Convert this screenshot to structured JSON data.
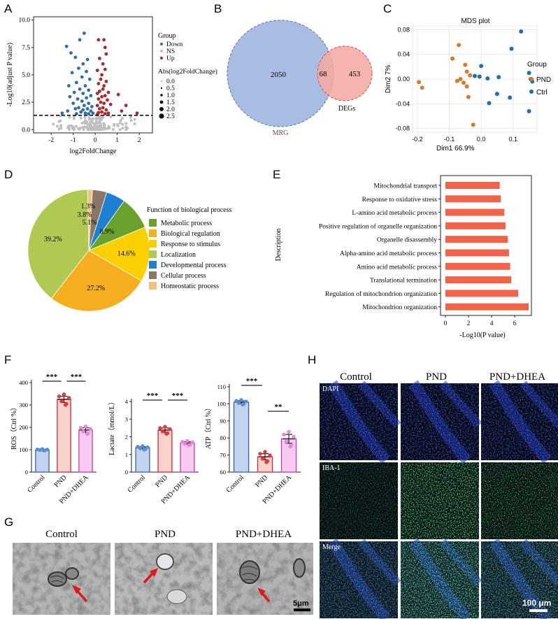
{
  "panel_labels": {
    "A": "A",
    "B": "B",
    "C": "C",
    "D": "D",
    "E": "E",
    "F": "F",
    "G": "G",
    "H": "H"
  },
  "chart_data": [
    {
      "panel": "A",
      "type": "scatter",
      "xlabel": "log2FoldChange",
      "ylabel": "-Log10(adjust P value)",
      "xlim": [
        -2.8,
        2.6
      ],
      "ylim": [
        -0.3,
        10.3
      ],
      "xticks": [
        "-2",
        "-1",
        "0",
        "1",
        "2"
      ],
      "yticks": [
        "0.0",
        "2.5",
        "5.0",
        "7.5",
        "10.0"
      ],
      "threshold": 1.3,
      "legend_group_title": "Group",
      "legend_groups": [
        {
          "name": "Down",
          "color": "#2f6fad"
        },
        {
          "name": "NS",
          "color": "#bfbfbf"
        },
        {
          "name": "Up",
          "color": "#a82a2a"
        }
      ],
      "legend_size_title": "Abs(log2FoldChange)",
      "legend_sizes": [
        "0.0",
        "0.5",
        "1.0",
        "1.5",
        "2.0",
        "2.5"
      ],
      "points": {
        "down": [
          [
            -0.5,
            8.8
          ],
          [
            -0.7,
            8.2
          ],
          [
            -1.3,
            7.6
          ],
          [
            -1.1,
            7.0
          ],
          [
            -0.9,
            6.6
          ],
          [
            -0.35,
            6.4
          ],
          [
            -0.55,
            6.0
          ],
          [
            -0.75,
            5.6
          ],
          [
            -1.05,
            5.2
          ],
          [
            -0.4,
            5.3
          ],
          [
            -0.6,
            4.8
          ],
          [
            -0.25,
            4.6
          ],
          [
            -0.85,
            4.3
          ],
          [
            -1.2,
            4.0
          ],
          [
            -0.45,
            4.0
          ],
          [
            -0.7,
            3.7
          ],
          [
            -0.3,
            3.6
          ],
          [
            -0.95,
            3.4
          ],
          [
            -0.55,
            3.3
          ],
          [
            -1.15,
            3.0
          ],
          [
            -0.2,
            3.1
          ],
          [
            -0.4,
            2.9
          ],
          [
            -0.8,
            2.8
          ],
          [
            -0.6,
            2.6
          ],
          [
            -1.0,
            2.4
          ],
          [
            -0.3,
            2.4
          ],
          [
            -0.5,
            2.2
          ],
          [
            -0.15,
            2.1
          ],
          [
            -0.75,
            2.0
          ],
          [
            -0.9,
            1.9
          ],
          [
            -0.35,
            1.9
          ],
          [
            -0.55,
            1.8
          ],
          [
            -1.25,
            1.7
          ],
          [
            -0.2,
            1.7
          ],
          [
            -0.65,
            1.6
          ],
          [
            -0.45,
            1.5
          ],
          [
            -1.5,
            1.5
          ],
          [
            -0.3,
            1.45
          ],
          [
            -0.85,
            1.45
          ],
          [
            -0.1,
            1.5
          ]
        ],
        "up": [
          [
            0.15,
            8.2
          ],
          [
            0.4,
            8.2
          ],
          [
            0.45,
            7.5
          ],
          [
            0.5,
            6.9
          ],
          [
            0.2,
            6.5
          ],
          [
            0.35,
            6.0
          ],
          [
            0.45,
            5.5
          ],
          [
            0.1,
            5.4
          ],
          [
            0.3,
            5.0
          ],
          [
            0.25,
            4.6
          ],
          [
            0.5,
            4.4
          ],
          [
            0.15,
            4.2
          ],
          [
            0.4,
            4.0
          ],
          [
            0.35,
            3.7
          ],
          [
            0.2,
            3.5
          ],
          [
            0.6,
            3.4
          ],
          [
            0.1,
            3.3
          ],
          [
            0.45,
            3.1
          ],
          [
            1.05,
            3.2
          ],
          [
            0.3,
            3.0
          ],
          [
            0.15,
            2.8
          ],
          [
            0.55,
            2.7
          ],
          [
            0.25,
            2.5
          ],
          [
            0.4,
            2.4
          ],
          [
            0.7,
            2.3
          ],
          [
            0.1,
            2.2
          ],
          [
            1.4,
            2.2
          ],
          [
            0.35,
            2.0
          ],
          [
            0.2,
            1.9
          ],
          [
            0.5,
            1.8
          ],
          [
            1.2,
            1.7
          ],
          [
            0.3,
            1.6
          ],
          [
            0.15,
            1.55
          ],
          [
            0.6,
            1.5
          ],
          [
            0.45,
            1.45
          ],
          [
            1.9,
            1.5
          ],
          [
            0.1,
            1.4
          ]
        ]
      }
    },
    {
      "panel": "B",
      "type": "venn",
      "sets": [
        {
          "name": "MRG",
          "only": "2050",
          "color": "#a9bde3"
        },
        {
          "name": "DEGs",
          "only": "453",
          "color": "#f4aaa2"
        }
      ],
      "intersection": "68"
    },
    {
      "panel": "C",
      "type": "scatter",
      "title": "MDS plot",
      "xlabel": "Dim1 66.9%",
      "ylabel": "Dim2 7%",
      "xlim": [
        -0.215,
        0.175
      ],
      "ylim": [
        -0.086,
        0.086
      ],
      "xticks": [
        "-0.2",
        "-0.1",
        "0.0",
        "0.1"
      ],
      "yticks": [
        "-0.08",
        "-0.04",
        "0.00",
        "0.04",
        "0.08"
      ],
      "legend_title": "Group",
      "series": [
        {
          "name": "PND",
          "color": "#d97a2b",
          "points": [
            [
              -0.07,
              0.055
            ],
            [
              -0.09,
              0.033
            ],
            [
              -0.05,
              0.023
            ],
            [
              -0.045,
              0.012
            ],
            [
              -0.035,
              0.006
            ],
            [
              -0.065,
              0.0
            ],
            [
              -0.075,
              -0.003
            ],
            [
              -0.055,
              -0.006
            ],
            [
              -0.045,
              -0.012
            ],
            [
              -0.195,
              -0.005
            ],
            [
              -0.185,
              -0.014
            ],
            [
              -0.04,
              -0.029
            ],
            [
              -0.025,
              -0.074
            ]
          ]
        },
        {
          "name": "Ctrl",
          "color": "#1f6fb2",
          "points": [
            [
              0.125,
              0.077
            ],
            [
              0.095,
              0.049
            ],
            [
              0.0,
              0.021
            ],
            [
              -0.02,
              0.005
            ],
            [
              -0.005,
              0.004
            ],
            [
              0.02,
              0.001
            ],
            [
              0.055,
              0.003
            ],
            [
              0.15,
              0.01
            ],
            [
              0.155,
              0.0
            ],
            [
              0.16,
              -0.004
            ],
            [
              0.05,
              -0.024
            ],
            [
              0.09,
              -0.03
            ],
            [
              0.025,
              -0.039
            ],
            [
              0.15,
              -0.052
            ]
          ]
        }
      ]
    },
    {
      "panel": "D",
      "type": "pie",
      "legend_title": "Function of biological process",
      "slices": [
        {
          "name": "Metabolic process",
          "value": 8.9,
          "label": "8.9%",
          "color": "#6aa02c"
        },
        {
          "name": "Biological regulation",
          "value": 27.2,
          "label": "27.2%",
          "color": "#f5ae1f"
        },
        {
          "name": "Response to stimulus",
          "value": 14.6,
          "label": "14.6%",
          "color": "#fcd000"
        },
        {
          "name": "Localization",
          "value": 39.2,
          "label": "39.2%",
          "color": "#afc953"
        },
        {
          "name": "Developmental process",
          "value": 5.1,
          "label": "5.1%",
          "color": "#1f7fd3"
        },
        {
          "name": "Cellular process",
          "value": 3.8,
          "label": "3.8%",
          "color": "#8a7768"
        },
        {
          "name": "Homeostatic process",
          "value": 1.3,
          "label": "1.3%",
          "color": "#f6c17c"
        }
      ],
      "order": [
        "Homeostatic process",
        "Cellular process",
        "Developmental process",
        "Metabolic process",
        "Response to stimulus",
        "Biological regulation",
        "Localization"
      ]
    },
    {
      "panel": "E",
      "type": "bar",
      "ylabel": "Description",
      "xlabel": "-Log10(P value)",
      "xlim": [
        0,
        7.2
      ],
      "xticks": [
        "0",
        "2",
        "4",
        "6"
      ],
      "color": "#f3634a",
      "categories": [
        "Mitochondrial transport",
        "Response to oxidative stress",
        "L-amino acid metabolic process",
        "Positive regulation of organelle organization",
        "Organelle disassembly",
        "Alpha-amino acid metabolic process",
        "Amino acid metabolic process",
        "Translational termination",
        "Regulation of mitochondrion organization",
        "Mitochondrion organization"
      ],
      "values": [
        4.7,
        4.8,
        5.1,
        5.2,
        5.4,
        5.5,
        5.6,
        5.7,
        6.3,
        7.2
      ]
    },
    {
      "panel": "F1",
      "type": "bar",
      "ylabel": "ROS（Ctrl %）",
      "ylim": [
        0,
        400
      ],
      "yticks": [
        "0",
        "100",
        "200",
        "300",
        "400"
      ],
      "categories": [
        "Control",
        "PND",
        "PND+DHEA"
      ],
      "values": [
        100,
        325,
        188
      ],
      "sem": [
        2,
        14,
        10
      ],
      "significance": [
        {
          "from": 0,
          "to": 1,
          "text": "***"
        },
        {
          "from": 1,
          "to": 2,
          "text": "***"
        }
      ]
    },
    {
      "panel": "F2",
      "type": "bar",
      "ylabel": "Lactate（mmol/L）",
      "ylim": [
        0,
        4
      ],
      "yticks": [
        "0",
        "1",
        "2",
        "3",
        "4"
      ],
      "categories": [
        "Control",
        "PND",
        "PND+DHEA"
      ],
      "values": [
        1.38,
        2.38,
        1.65
      ],
      "sem": [
        0.06,
        0.12,
        0.07
      ],
      "significance": [
        {
          "from": 0,
          "to": 1,
          "text": "***"
        },
        {
          "from": 1,
          "to": 2,
          "text": "***"
        }
      ]
    },
    {
      "panel": "F3",
      "type": "bar",
      "ylabel": "ATP（Ctrl %）",
      "ylim": [
        60,
        110
      ],
      "yticks": [
        "60",
        "70",
        "80",
        "90",
        "100",
        "110"
      ],
      "categories": [
        "Control",
        "PND",
        "PND+DHEA"
      ],
      "values": [
        101,
        69,
        79.5
      ],
      "sem": [
        0.8,
        1.8,
        2.6
      ],
      "significance": [
        {
          "from": 0,
          "to": 1,
          "text": "***"
        },
        {
          "from": 1,
          "to": 2,
          "text": "**"
        }
      ]
    }
  ],
  "panel_g": {
    "columns": [
      "Control",
      "PND",
      "PND+DHEA"
    ],
    "scale_bar": "5μm"
  },
  "panel_h": {
    "columns": [
      "Control",
      "PND",
      "PND+DHEA"
    ],
    "rows": [
      "DAPI",
      "IBA-1",
      "Merge"
    ],
    "scale_bar": "100 μm"
  }
}
